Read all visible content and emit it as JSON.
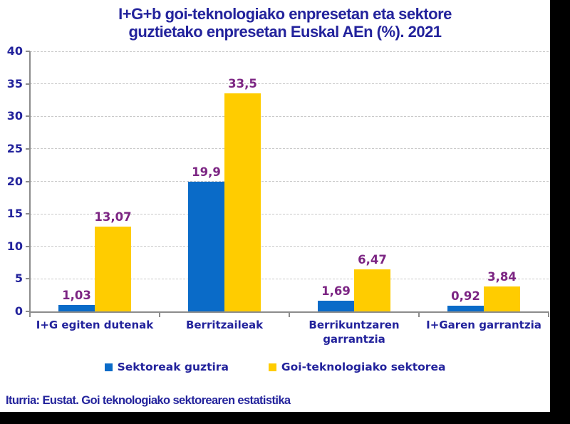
{
  "title": {
    "line1": "I+G+b goi-teknologiako enpresetan eta sektore",
    "line2": "guztietako enpresetan Euskal AEn (%). 2021"
  },
  "source_text": "Iturria: Eustat. Goi teknologiako sektorearen estatistika",
  "colors": {
    "title_text": "#23239C",
    "axis_label_text": "#23239C",
    "data_label_text": "#7C2583",
    "bar_blue": "#0A6BC8",
    "bar_yellow": "#FFCC00",
    "gridline": "#C9C9C9",
    "axis_line": "#8C8C8C",
    "frame": "#000000"
  },
  "chart_data": {
    "type": "bar",
    "title": "I+G+b goi-teknologiako enpresetan eta sektore guztietako enpresetan Euskal AEn (%). 2021",
    "categories": [
      "I+G egiten dutenak",
      "Berritzaileak",
      "Berrikuntzaren garrantzia",
      "I+Garen garrantzia"
    ],
    "series": [
      {
        "name": "Sektoreak guztira",
        "color": "#0A6BC8",
        "values": [
          1.03,
          19.9,
          1.69,
          0.92
        ],
        "labels": [
          "1,03",
          "19,9",
          "1,69",
          "0,92"
        ]
      },
      {
        "name": "Goi-teknologiako sektorea",
        "color": "#FFCC00",
        "values": [
          13.07,
          33.5,
          6.47,
          3.84
        ],
        "labels": [
          "13,07",
          "33,5",
          "6,47",
          "3,84"
        ]
      }
    ],
    "xlabel": "",
    "ylabel": "",
    "ylim": [
      0,
      40
    ],
    "yticks": [
      0,
      5,
      10,
      15,
      20,
      25,
      30,
      35,
      40
    ],
    "grid": "horizontal-dashed",
    "legend_position": "bottom"
  }
}
